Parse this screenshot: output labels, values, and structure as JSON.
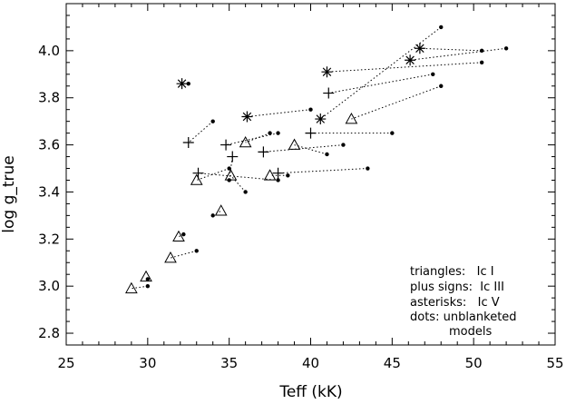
{
  "chart_data": {
    "type": "scatter",
    "title": "",
    "xlabel": "Teff (kK)",
    "ylabel": "log g_true",
    "xlim": [
      25,
      55
    ],
    "ylim": [
      2.75,
      4.2
    ],
    "x_ticks": [
      "25",
      "30",
      "35",
      "40",
      "45",
      "50",
      "55"
    ],
    "y_ticks": [
      "2.8",
      "3.0",
      "3.2",
      "3.4",
      "3.6",
      "3.8",
      "4.0"
    ],
    "legend": {
      "placement": "bottom-right",
      "lines": [
        "triangles:   Ic I",
        "plus signs:  Ic III",
        "asterisks:   Ic V",
        "dots: unblanketed",
        "models"
      ]
    },
    "pairs": [
      {
        "marker": "triangle",
        "x": 29.0,
        "y": 2.99,
        "dot": [
          30.0,
          3.0
        ]
      },
      {
        "marker": "triangle",
        "x": 29.9,
        "y": 3.04,
        "dot": [
          30.0,
          3.03
        ]
      },
      {
        "marker": "triangle",
        "x": 31.4,
        "y": 3.12,
        "dot": [
          33.0,
          3.15
        ]
      },
      {
        "marker": "triangle",
        "x": 31.9,
        "y": 3.21,
        "dot": [
          32.2,
          3.22
        ]
      },
      {
        "marker": "triangle",
        "x": 33.0,
        "y": 3.45,
        "dot": [
          35.0,
          3.5
        ]
      },
      {
        "marker": "triangle",
        "x": 34.5,
        "y": 3.32,
        "dot": [
          34.0,
          3.3
        ]
      },
      {
        "marker": "triangle",
        "x": 35.1,
        "y": 3.47,
        "dot": [
          36.0,
          3.4
        ]
      },
      {
        "marker": "triangle",
        "x": 36.0,
        "y": 3.61,
        "dot": [
          37.5,
          3.65
        ]
      },
      {
        "marker": "triangle",
        "x": 37.5,
        "y": 3.47,
        "dot": [
          38.6,
          3.47
        ]
      },
      {
        "marker": "triangle",
        "x": 39.0,
        "y": 3.6,
        "dot": [
          41.0,
          3.56
        ]
      },
      {
        "marker": "triangle",
        "x": 42.5,
        "y": 3.71,
        "dot": [
          48.0,
          3.85
        ]
      },
      {
        "marker": "plus",
        "x": 32.5,
        "y": 3.61,
        "dot": [
          34.0,
          3.7
        ]
      },
      {
        "marker": "plus",
        "x": 33.1,
        "y": 3.48,
        "dot": [
          38.0,
          3.45
        ]
      },
      {
        "marker": "plus",
        "x": 34.8,
        "y": 3.6,
        "dot": [
          38.0,
          3.65
        ]
      },
      {
        "marker": "plus",
        "x": 35.2,
        "y": 3.55,
        "dot": [
          35.0,
          3.45
        ]
      },
      {
        "marker": "plus",
        "x": 37.1,
        "y": 3.57,
        "dot": [
          42.0,
          3.6
        ]
      },
      {
        "marker": "plus",
        "x": 38.0,
        "y": 3.48,
        "dot": [
          43.5,
          3.5
        ]
      },
      {
        "marker": "plus",
        "x": 40.0,
        "y": 3.65,
        "dot": [
          45.0,
          3.65
        ]
      },
      {
        "marker": "plus",
        "x": 41.1,
        "y": 3.82,
        "dot": [
          47.5,
          3.9
        ]
      },
      {
        "marker": "asterisk",
        "x": 32.1,
        "y": 3.86,
        "dot": [
          32.5,
          3.86
        ]
      },
      {
        "marker": "asterisk",
        "x": 36.1,
        "y": 3.72,
        "dot": [
          40.0,
          3.75
        ]
      },
      {
        "marker": "asterisk",
        "x": 40.6,
        "y": 3.71,
        "dot": [
          48.0,
          4.1
        ]
      },
      {
        "marker": "asterisk",
        "x": 41.0,
        "y": 3.91,
        "dot": [
          50.5,
          3.95
        ]
      },
      {
        "marker": "asterisk",
        "x": 46.1,
        "y": 3.96,
        "dot": [
          52.0,
          4.01
        ]
      },
      {
        "marker": "asterisk",
        "x": 46.7,
        "y": 4.01,
        "dot": [
          50.5,
          4.0
        ]
      }
    ]
  }
}
